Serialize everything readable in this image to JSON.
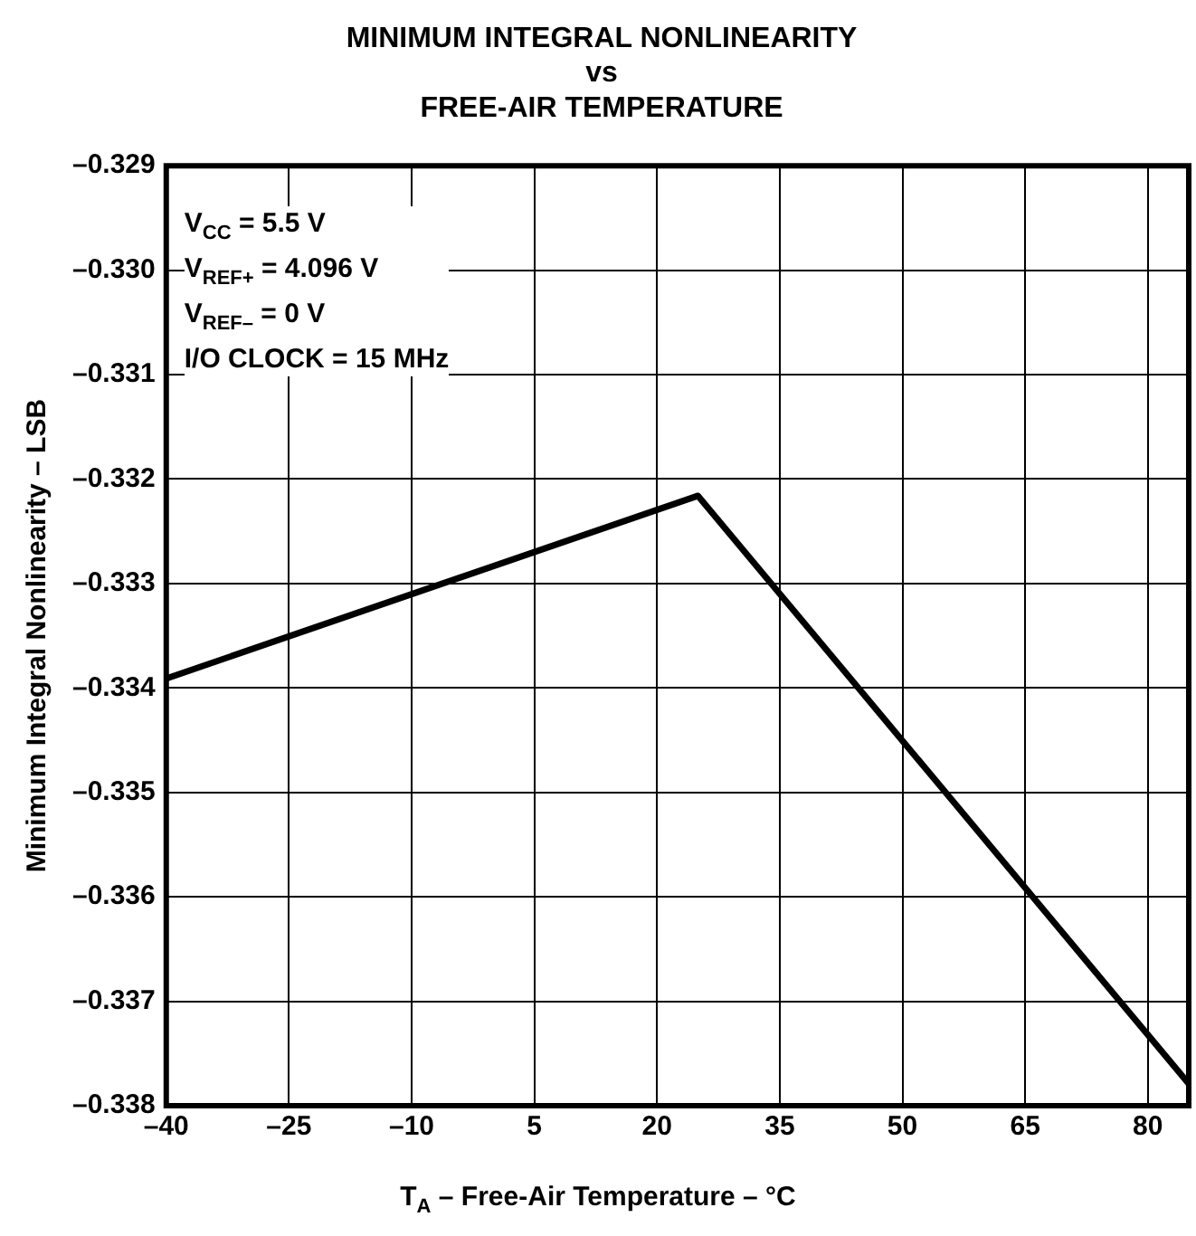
{
  "chart_data": {
    "type": "line",
    "title": "MINIMUM INTEGRAL NONLINEARITY\nvs\nFREE-AIR TEMPERATURE",
    "xlabel": "T$_{A}$ – Free-Air Temperature – °C",
    "ylabel": "Minimum Integral Nonlinearity – LSB",
    "x": [
      -40,
      25,
      85
    ],
    "series": [
      {
        "color": "#000000",
        "values": [
          -0.33391,
          -0.33216,
          -0.33779
        ]
      }
    ],
    "xlim": [
      -40,
      85
    ],
    "xticks": [
      {
        "value": -40,
        "label": "–40"
      },
      {
        "value": -25,
        "label": "–25"
      },
      {
        "value": -10,
        "label": "–10"
      },
      5,
      20,
      35,
      50,
      65,
      80
    ],
    "ylim": [
      -0.338,
      -0.329
    ],
    "yticks": [
      {
        "value": -0.338,
        "label": "–0.338"
      },
      {
        "value": -0.337,
        "label": "–0.337"
      },
      {
        "value": -0.336,
        "label": "–0.336"
      },
      {
        "value": -0.335,
        "label": "–0.335"
      },
      {
        "value": -0.334,
        "label": "–0.334"
      },
      {
        "value": -0.333,
        "label": "–0.333"
      },
      {
        "value": -0.332,
        "label": "–0.332"
      },
      {
        "value": -0.331,
        "label": "–0.331"
      },
      {
        "value": -0.33,
        "label": "–0.330"
      },
      {
        "value": -0.329,
        "label": "–0.329"
      }
    ],
    "grid": true,
    "legend": false,
    "marker": "none",
    "line_style": "solid",
    "annotations": [
      "V$_{CC}$ = 5.5 V",
      "V$_{REF+}$ = 4.096 V",
      "V$_{REF–}$ = 0 V",
      "I/O CLOCK = 15 MHz"
    ]
  }
}
